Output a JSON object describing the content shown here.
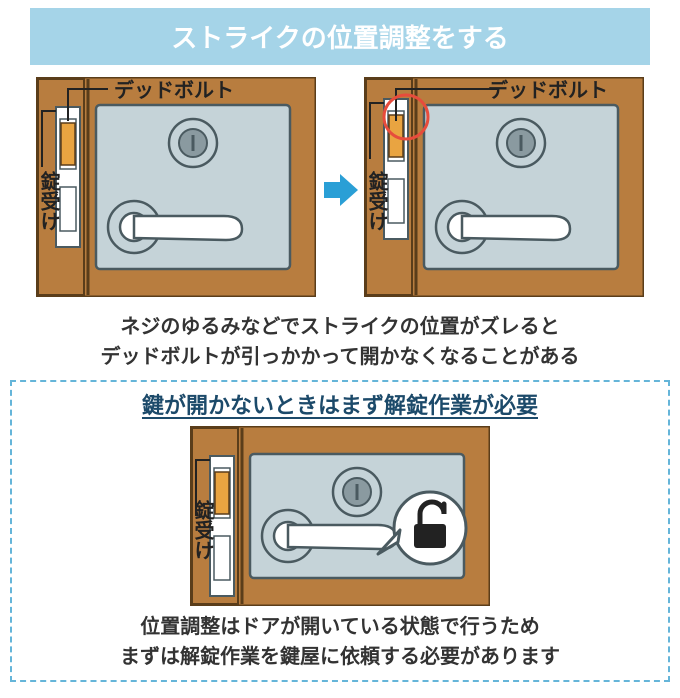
{
  "title": "ストライクの位置調整をする",
  "labels": {
    "deadbolt": "デッドボルト",
    "strike": "錠受け"
  },
  "explain1_line1": "ネジのゆるみなどでストライクの位置がズレると",
  "explain1_line2": "デッドボルトが引っかかって開かなくなることがある",
  "subhead": "鍵が開かないときはまず解錠作業が必要",
  "explain2_line1": "位置調整はドアが開いている状態で行うため",
  "explain2_line2": "まずは解錠作業を鍵屋に依頼する必要があります",
  "colors": {
    "title_bg": "#a5d4e8",
    "title_text": "#ffffff",
    "wood": "#b87d3f",
    "wood_border": "#5a3d1a",
    "strike_plate": "#ffffff",
    "deadbolt": "#e9a441",
    "lock_body": "#c5d3d8",
    "lock_stroke": "#4a5a60",
    "cylinder_inner": "#8a9aa0",
    "handle_fill": "#ffffff",
    "label_text": "#222222",
    "arrow": "#2a9fd6",
    "highlight_circle": "#e74c3c",
    "dashed_border": "#65b5d9",
    "subhead_text": "#1c4a6a",
    "padlock": "#222222",
    "bubble_border": "#4a5a60"
  },
  "sizes": {
    "title_fontsize": 26,
    "label_fontsize": 20,
    "explain_fontsize": 20,
    "subhead_fontsize": 22,
    "diagram_w": 280,
    "diagram_h": 220,
    "bottom_w": 300,
    "bottom_h": 180,
    "highlight_r": 22,
    "highlight_stroke": 3,
    "dashed_border_w": 2,
    "strike_offset_normal": 0,
    "strike_offset_shifted": -8
  },
  "type": "infographic"
}
